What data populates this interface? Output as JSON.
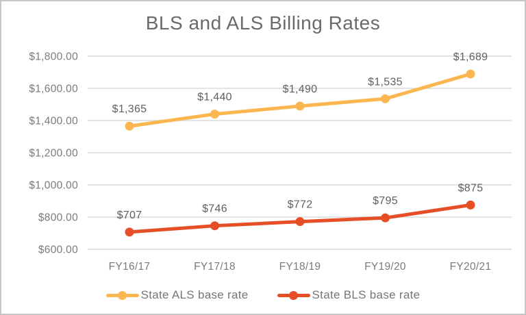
{
  "chart_data": {
    "type": "line",
    "title": "BLS and ALS Billing Rates",
    "categories": [
      "FY16/17",
      "FY17/18",
      "FY18/19",
      "FY19/20",
      "FY20/21"
    ],
    "series": [
      {
        "name": "State ALS base rate",
        "color": "#FBB650",
        "values": [
          1365,
          1440,
          1490,
          1535,
          1689
        ],
        "point_labels": [
          "$1,365",
          "$1,440",
          "$1,490",
          "$1,535",
          "$1,689"
        ]
      },
      {
        "name": "State BLS base rate",
        "color": "#E64E26",
        "values": [
          707,
          746,
          772,
          795,
          875
        ],
        "point_labels": [
          "$707",
          "$746",
          "$772",
          "$795",
          "$875"
        ]
      }
    ],
    "y_axis": {
      "min": 600,
      "max": 1800,
      "step": 200,
      "tick_labels": [
        "$600.00",
        "$800.00",
        "$1,000.00",
        "$1,200.00",
        "$1,400.00",
        "$1,600.00",
        "$1,800.00"
      ]
    },
    "grid": true,
    "legend_position": "bottom",
    "colors": {
      "grid_line": "#d9d9d9",
      "axis_text": "#7a7a7a",
      "data_label_text": "#5f5f5f",
      "title_text": "#6a6a6a"
    }
  }
}
